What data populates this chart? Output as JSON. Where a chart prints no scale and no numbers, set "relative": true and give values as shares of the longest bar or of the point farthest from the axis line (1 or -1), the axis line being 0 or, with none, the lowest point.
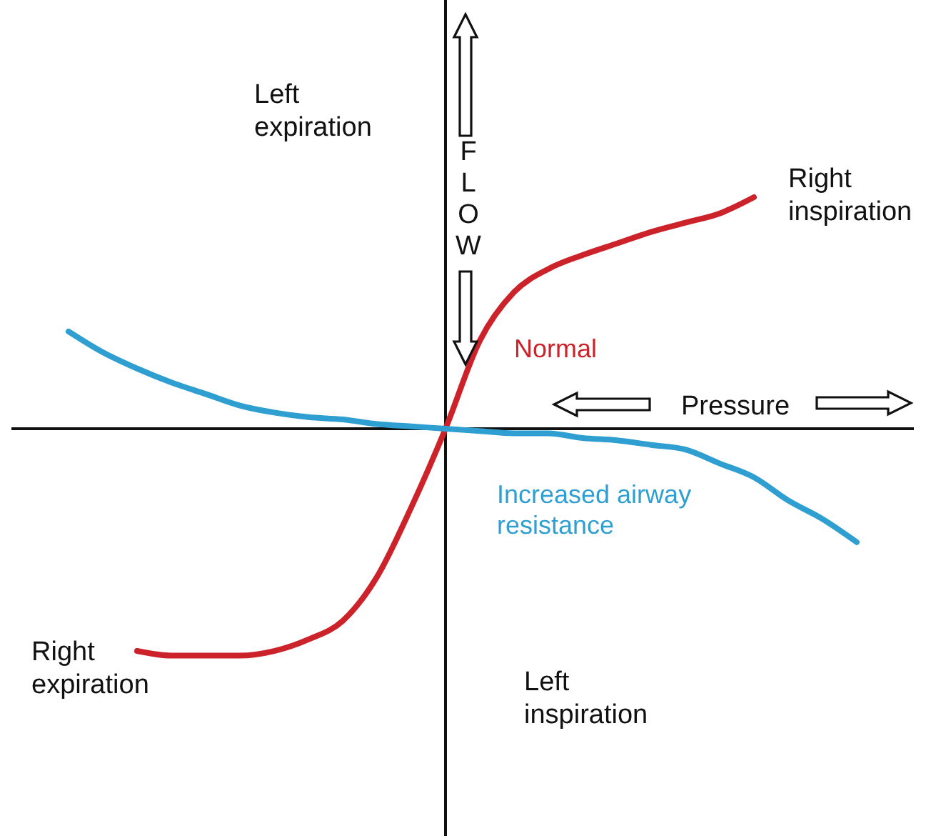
{
  "chart_data": {
    "type": "line",
    "relative": true,
    "xlabel": "Pressure",
    "ylabel": "FLOW",
    "categories": [
      null,
      null,
      null,
      null,
      null,
      null,
      null,
      null,
      null,
      null,
      null,
      null,
      null,
      null,
      null,
      null,
      null,
      null,
      null,
      null,
      null,
      null,
      null,
      null,
      null
    ],
    "series": [
      {
        "name": "Normal",
        "color": "#cc2229",
        "values": [
          null,
          null,
          null,
          -0.96,
          -0.98,
          -0.98,
          -0.98,
          -0.96,
          -0.91,
          -0.83,
          -0.64,
          -0.34,
          0,
          0.38,
          0.59,
          0.69,
          0.75,
          0.8,
          0.85,
          0.89,
          0.93,
          1.0,
          null,
          null,
          null
        ]
      },
      {
        "name": "Increased airway\nresistance",
        "color": "#2e9fd0",
        "values": [
          null,
          0.42,
          0.33,
          0.26,
          0.2,
          0.15,
          0.1,
          0.07,
          0.05,
          0.04,
          0.02,
          0.01,
          0,
          -0.01,
          -0.02,
          -0.02,
          -0.04,
          -0.05,
          -0.07,
          -0.09,
          -0.15,
          -0.21,
          -0.31,
          -0.39,
          -0.49
        ]
      }
    ],
    "annotations": [
      "Left\nexpiration",
      "Right\ninspiration",
      "Right\nexpiration",
      "Left\ninspiration"
    ]
  }
}
